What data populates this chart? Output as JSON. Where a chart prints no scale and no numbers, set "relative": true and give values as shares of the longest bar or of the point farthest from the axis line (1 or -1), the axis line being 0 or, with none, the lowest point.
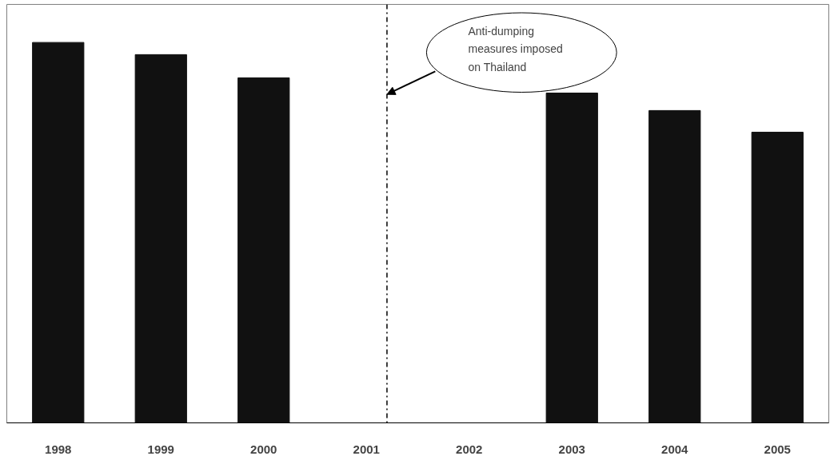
{
  "chart_data": {
    "type": "bar",
    "relative": true,
    "x": [
      1998,
      1999,
      2000,
      2001,
      2002,
      2003,
      2004,
      2005
    ],
    "values": [
      1,
      0.968,
      0.907,
      null,
      null,
      0.867,
      0.821,
      0.764
    ],
    "color": "#111111",
    "xlim": [
      1997.5,
      2005.5
    ],
    "xticks": [
      1998,
      1999,
      2000,
      2001,
      2002,
      2003,
      2004,
      2005
    ],
    "tick_labels": "x",
    "grid": false,
    "annotations": [
      "Anti-dumping measures imposed on Thailand"
    ],
    "ref_lines": [
      {
        "axis": "x",
        "value": 2001.2,
        "color": "#000000",
        "line_style": "dashdot"
      }
    ]
  }
}
